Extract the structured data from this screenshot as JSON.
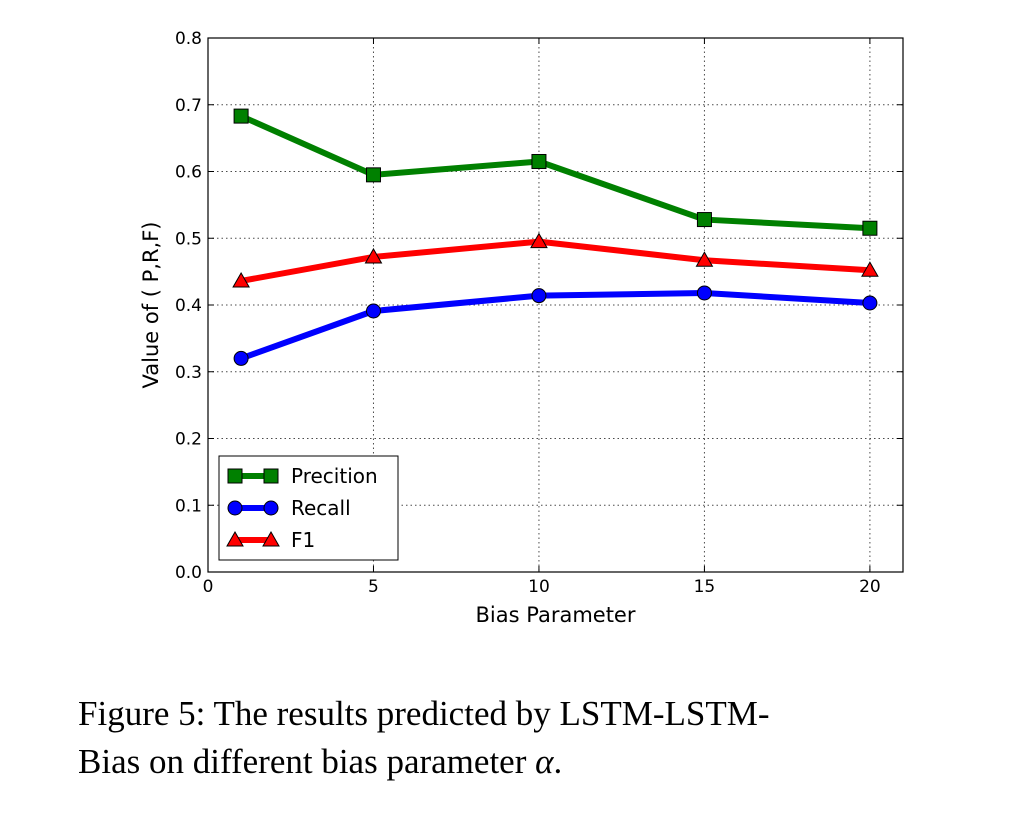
{
  "chart_data": {
    "type": "line",
    "x": [
      1,
      5,
      10,
      15,
      20
    ],
    "series": [
      {
        "name": "Precition",
        "values": [
          0.683,
          0.595,
          0.615,
          0.528,
          0.515
        ],
        "color": "#008000",
        "marker": "square"
      },
      {
        "name": "Recall",
        "values": [
          0.32,
          0.391,
          0.414,
          0.418,
          0.403
        ],
        "color": "#0000ff",
        "marker": "circle"
      },
      {
        "name": "F1",
        "values": [
          0.436,
          0.472,
          0.495,
          0.467,
          0.452
        ],
        "color": "#ff0000",
        "marker": "triangle"
      }
    ],
    "xlabel": "Bias Parameter",
    "ylabel": "Value of ( P,R,F)",
    "xlim": [
      0,
      21
    ],
    "ylim": [
      0.0,
      0.8
    ],
    "xticks": [
      0,
      5,
      10,
      15,
      20
    ],
    "xtick_labels": [
      "0",
      "5",
      "10",
      "15",
      "20"
    ],
    "yticks": [
      0.0,
      0.1,
      0.2,
      0.3,
      0.4,
      0.5,
      0.6,
      0.7,
      0.8
    ],
    "ytick_labels": [
      "0.0",
      "0.1",
      "0.2",
      "0.3",
      "0.4",
      "0.5",
      "0.6",
      "0.7",
      "0.8"
    ],
    "grid": true,
    "legend_position": "lower-left"
  },
  "caption": {
    "line1": "Figure 5: The results predicted by LSTM-LSTM-",
    "line2_text": "Bias on different bias parameter ",
    "symbol": "α",
    "period": "."
  }
}
